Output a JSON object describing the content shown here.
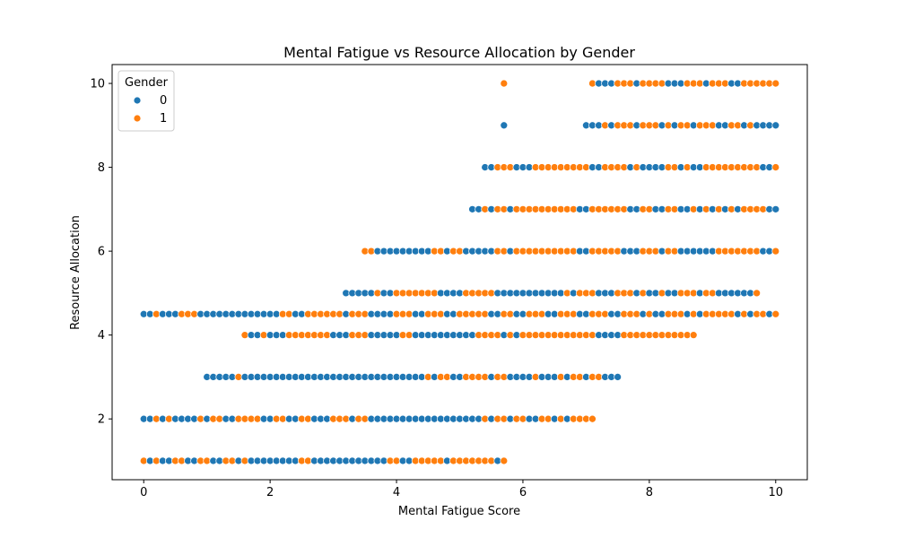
{
  "chart_data": {
    "type": "scatter",
    "title": "Mental Fatigue vs Resource Allocation by Gender",
    "xlabel": "Mental Fatigue Score",
    "ylabel": "Resource Allocation",
    "xlim": [
      -0.5,
      10.5
    ],
    "ylim": [
      0.55,
      10.45
    ],
    "xticks": [
      0,
      2,
      4,
      6,
      8,
      10
    ],
    "yticks": [
      2,
      4,
      6,
      8,
      10
    ],
    "grid": false,
    "legend": {
      "title": "Gender",
      "position": "top-left",
      "entries": [
        "0",
        "1"
      ]
    },
    "colors": {
      "0": "#1f77b4",
      "1": "#ff7f0e"
    },
    "bands": [
      {
        "y": 1.0,
        "xmin": 0.0,
        "xmax": 5.7,
        "orange_x": [
          0.0,
          0.2,
          0.5,
          0.6,
          0.9,
          1.0,
          1.3,
          1.4,
          1.6,
          2.5,
          2.6,
          3.9,
          4.0,
          4.3,
          4.4,
          4.5,
          4.6,
          4.7,
          4.9,
          5.0,
          5.1,
          5.2,
          5.3,
          5.4,
          5.5,
          5.7
        ],
        "blue_extra_x": []
      },
      {
        "y": 2.0,
        "xmin": 0.0,
        "xmax": 7.1,
        "orange_x": [
          0.2,
          0.4,
          0.9,
          1.1,
          1.2,
          1.5,
          1.6,
          1.7,
          1.8,
          2.1,
          2.2,
          2.5,
          2.6,
          3.0,
          3.1,
          3.2,
          3.4,
          3.5,
          5.4,
          5.6,
          5.7,
          5.9,
          6.0,
          6.3,
          6.4,
          6.6,
          6.8,
          6.9,
          7.0,
          7.1
        ],
        "blue_extra_x": []
      },
      {
        "y": 3.0,
        "xmin": 1.0,
        "xmax": 7.5,
        "orange_x": [
          1.5,
          4.5,
          4.7,
          4.8,
          5.1,
          5.2,
          5.3,
          5.4,
          5.6,
          5.7,
          6.2,
          6.6,
          6.8,
          6.9,
          7.1,
          7.2
        ],
        "blue_extra_x": []
      },
      {
        "y": 4.0,
        "xmin": 1.6,
        "xmax": 8.7,
        "orange_x": [
          1.6,
          1.9,
          2.3,
          2.4,
          2.5,
          2.6,
          2.7,
          2.8,
          2.9,
          3.3,
          3.4,
          3.5,
          4.1,
          4.2,
          5.3,
          5.4,
          5.5,
          5.6,
          5.8,
          6.0,
          6.1,
          6.2,
          6.3,
          6.4,
          6.5,
          6.6,
          6.7,
          6.8,
          6.9,
          7.0,
          7.1,
          7.6,
          7.7,
          7.8,
          7.9,
          8.0,
          8.1,
          8.2,
          8.3,
          8.4,
          8.5,
          8.6,
          8.7
        ],
        "blue_extra_x": []
      },
      {
        "y": 4.5,
        "xmin": 0.0,
        "xmax": 10.0,
        "orange_x": [
          0.2,
          0.6,
          0.7,
          0.8,
          2.2,
          2.3,
          2.6,
          2.7,
          2.8,
          2.9,
          3.0,
          3.1,
          3.3,
          3.4,
          3.5,
          4.0,
          4.1,
          4.2,
          4.5,
          4.6,
          4.7,
          5.0,
          5.1,
          5.2,
          5.3,
          5.4,
          5.7,
          5.8,
          6.1,
          6.2,
          6.3,
          6.6,
          6.7,
          6.8,
          7.1,
          7.2,
          7.3,
          7.6,
          7.7,
          7.8,
          8.0,
          8.3,
          8.4,
          8.5,
          8.7,
          8.9,
          9.0,
          9.1,
          9.2,
          9.3,
          9.5,
          9.7,
          9.8,
          10.0
        ],
        "blue_extra_x": []
      },
      {
        "y": 5.0,
        "xmin": 3.2,
        "xmax": 9.7,
        "orange_x": [
          3.7,
          4.0,
          4.1,
          4.2,
          4.3,
          4.4,
          4.5,
          4.6,
          5.1,
          5.2,
          5.3,
          5.4,
          5.5,
          6.7,
          6.9,
          7.0,
          7.1,
          7.5,
          7.6,
          7.7,
          7.9,
          8.2,
          8.5,
          8.6,
          8.7,
          8.9,
          9.0,
          9.7
        ],
        "blue_extra_x": []
      },
      {
        "y": 6.0,
        "xmin": 3.5,
        "xmax": 10.0,
        "orange_x": [
          3.5,
          3.6,
          4.6,
          4.7,
          4.9,
          5.0,
          5.6,
          5.7,
          5.9,
          6.0,
          6.1,
          6.2,
          6.3,
          6.4,
          6.5,
          6.6,
          6.7,
          6.8,
          7.1,
          7.2,
          7.3,
          7.4,
          7.5,
          7.9,
          8.0,
          8.1,
          8.3,
          8.4,
          9.1,
          9.2,
          9.3,
          9.4,
          9.5,
          9.6,
          9.7,
          10.0
        ],
        "blue_extra_x": []
      },
      {
        "y": 7.0,
        "xmin": 5.2,
        "xmax": 10.0,
        "orange_x": [
          5.4,
          5.6,
          5.7,
          5.9,
          6.0,
          6.1,
          6.2,
          6.3,
          6.4,
          6.5,
          6.6,
          6.7,
          6.8,
          7.1,
          7.2,
          7.3,
          7.4,
          7.5,
          7.6,
          7.9,
          8.0,
          8.3,
          8.4,
          8.7,
          8.9,
          9.1,
          9.3,
          9.5,
          9.6,
          9.7,
          9.8
        ],
        "blue_extra_x": []
      },
      {
        "y": 8.0,
        "xmin": 5.4,
        "xmax": 10.0,
        "orange_x": [
          5.6,
          5.7,
          5.8,
          6.2,
          6.3,
          6.4,
          6.5,
          6.6,
          6.7,
          6.8,
          6.9,
          7.0,
          7.3,
          7.4,
          7.5,
          7.6,
          7.8,
          8.3,
          8.4,
          8.6,
          8.9,
          9.0,
          9.1,
          9.2,
          9.3,
          9.4,
          9.5,
          9.6,
          9.7,
          10.0
        ],
        "blue_extra_x": []
      },
      {
        "y": 9.0,
        "xmin": 7.0,
        "xmax": 10.0,
        "orange_x": [
          7.3,
          7.5,
          7.6,
          7.7,
          7.9,
          8.0,
          8.1,
          8.3,
          8.5,
          8.6,
          8.8,
          8.9,
          9.0,
          9.3,
          9.4,
          9.6
        ],
        "blue_extra_x": [
          5.7
        ]
      },
      {
        "y": 10.0,
        "xmin": 7.1,
        "xmax": 10.0,
        "orange_x": [
          5.7,
          7.1,
          7.5,
          7.6,
          7.7,
          7.9,
          8.0,
          8.1,
          8.2,
          8.6,
          8.7,
          8.8,
          9.0,
          9.1,
          9.2,
          9.5,
          9.6,
          9.7,
          9.8,
          9.9,
          10.0
        ],
        "blue_extra_x": []
      }
    ]
  }
}
